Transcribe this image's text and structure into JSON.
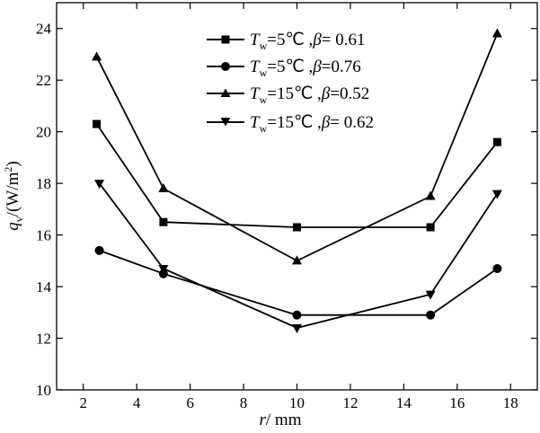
{
  "chart_data": {
    "type": "line",
    "xlabel": "r/ mm",
    "ylabel": "qv/(W/m2)",
    "xlim": [
      1,
      19
    ],
    "ylim": [
      10,
      25
    ],
    "xticks": [
      2,
      4,
      6,
      8,
      10,
      12,
      14,
      16,
      18
    ],
    "yticks": [
      10,
      12,
      14,
      16,
      18,
      20,
      22,
      24
    ],
    "xtick_labels": [
      "2",
      "4",
      "6",
      "8",
      "10",
      "12",
      "14",
      "16",
      "18"
    ],
    "ytick_labels": [
      "10",
      "12",
      "14",
      "16",
      "18",
      "20",
      "22",
      "24"
    ],
    "grid": false,
    "legend_position": "top-right",
    "series": [
      {
        "name": "Tw=5℃, β= 0.61",
        "marker": "square",
        "x": [
          2.5,
          5.0,
          10.0,
          15.0,
          17.5
        ],
        "values": [
          20.3,
          16.5,
          16.3,
          16.3,
          19.6
        ]
      },
      {
        "name": "Tw=5℃, β=0.76",
        "marker": "circle",
        "x": [
          2.6,
          5.0,
          10.0,
          15.0,
          17.5
        ],
        "values": [
          15.4,
          14.5,
          12.9,
          12.9,
          14.7
        ]
      },
      {
        "name": "Tw=15℃, β=0.52",
        "marker": "triangle-up",
        "x": [
          2.5,
          5.0,
          10.0,
          15.0,
          17.5
        ],
        "values": [
          22.9,
          17.8,
          15.0,
          17.5,
          23.8
        ]
      },
      {
        "name": "Tw=15℃, β= 0.62",
        "marker": "triangle-down",
        "x": [
          2.6,
          5.0,
          10.0,
          15.0,
          17.5
        ],
        "values": [
          18.0,
          14.7,
          12.4,
          13.7,
          17.6
        ]
      }
    ]
  },
  "axis_titles": {
    "y_var": "q",
    "y_sub": "v",
    "y_unit": "/(W/m",
    "y_sup": "2",
    "y_close": ")",
    "x_var": "r",
    "x_unit": "/ mm"
  },
  "legend": [
    {
      "var": "T",
      "sub": "w",
      "temp": "=5℃ ,",
      "beta": "β",
      "value": "= 0.61"
    },
    {
      "var": "T",
      "sub": "w",
      "temp": "=5℃ ,",
      "beta": "β",
      "value": "=0.76"
    },
    {
      "var": "T",
      "sub": "w",
      "temp": "=15℃ ,",
      "beta": "β",
      "value": "=0.52"
    },
    {
      "var": "T",
      "sub": "w",
      "temp": "=15℃ ,",
      "beta": "β",
      "value": "= 0.62"
    }
  ]
}
